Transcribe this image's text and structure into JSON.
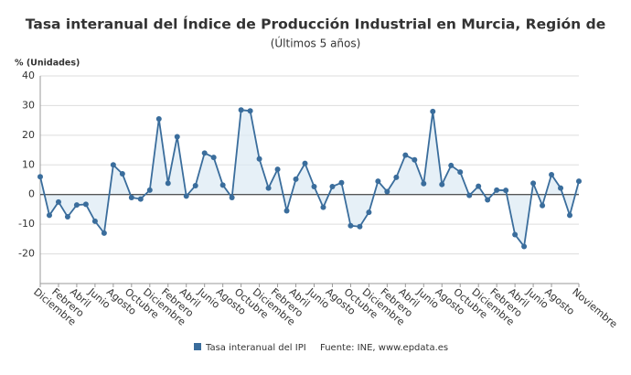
{
  "chart_data": {
    "type": "line",
    "title": "Tasa interanual del Índice de Producción Industrial en Murcia, Región de",
    "subtitle": "(Últimos 5 años)",
    "y_axis_label": "% (Unidades)",
    "source": "Fuente: INE, www.epdata.es",
    "categories": [
      "Diciembre",
      null,
      "Febrero",
      null,
      "Abril",
      null,
      "Junio",
      null,
      "Agosto",
      null,
      "Octubre",
      null,
      "Diciembre",
      null,
      "Febrero",
      null,
      "Abril",
      null,
      "Junio",
      null,
      "Agosto",
      null,
      "Octubre",
      null,
      "Diciembre",
      null,
      "Febrero",
      null,
      "Abril",
      null,
      "Junio",
      null,
      "Agosto",
      null,
      "Octubre",
      null,
      "Diciembre",
      null,
      "Febrero",
      null,
      "Abril",
      null,
      "Junio",
      null,
      "Agosto",
      null,
      "Octubre",
      null,
      "Diciembre",
      null,
      "Febrero",
      null,
      "Abril",
      null,
      "Junio",
      null,
      "Agosto",
      null,
      null,
      "Noviembre"
    ],
    "series": [
      {
        "name": "Tasa interanual del IPI",
        "color": "#3a6d9c",
        "values": [
          6,
          -7,
          -2.5,
          -7.5,
          -3.5,
          -3.3,
          -9,
          -13,
          10,
          7,
          -1,
          -1.5,
          1.5,
          25.5,
          3.8,
          19.5,
          -0.5,
          3,
          14,
          12.5,
          3.2,
          -1,
          28.5,
          28.2,
          12,
          2.2,
          8.5,
          -5.5,
          5.2,
          10.5,
          2.7,
          -4.3,
          2.7,
          4,
          -10.5,
          -10.8,
          -6,
          4.5,
          1,
          5.8,
          13.3,
          11.7,
          3.7,
          28,
          3.4,
          9.8,
          7.6,
          -0.3,
          2.8,
          -1.8,
          1.5,
          1.4,
          -13.5,
          -17.5,
          3.8,
          -3.7,
          6.7,
          2.2,
          -7,
          4.5
        ]
      }
    ],
    "ylim": [
      -30,
      40
    ],
    "yticks": [
      -20,
      -10,
      0,
      10,
      20,
      30,
      40
    ],
    "grid": true
  }
}
